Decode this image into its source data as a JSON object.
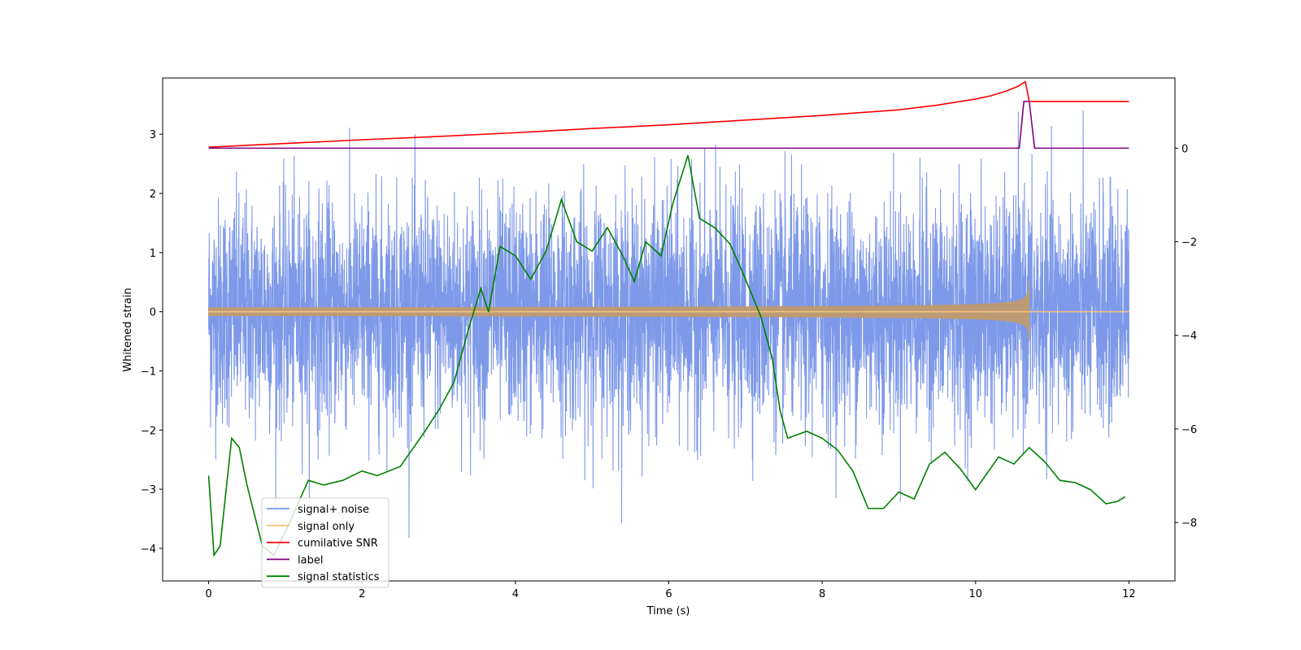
{
  "chart_data": {
    "type": "line",
    "title": "",
    "xlabel": "Time (s)",
    "ylabel": "Whitened strain",
    "xlim": [
      -0.6,
      12.6
    ],
    "ylim": [
      -4.55,
      3.95
    ],
    "y2lim": [
      -9.25,
      1.5
    ],
    "xticks": [
      0,
      2,
      4,
      6,
      8,
      10,
      12
    ],
    "yticks": [
      -4,
      -3,
      -2,
      -1,
      0,
      1,
      2,
      3
    ],
    "y2ticks": [
      -8,
      -6,
      -4,
      -2,
      0
    ],
    "legend_position": "lower-left",
    "series": [
      {
        "name": "signal+ noise",
        "color": "#7794e8",
        "axis": "left",
        "kind": "noise",
        "x_range": [
          0,
          12
        ],
        "sigma": 0.95,
        "min": -4.2,
        "max": 3.55
      },
      {
        "name": "signal only",
        "color": "#f6c47f",
        "axis": "left",
        "kind": "chirp",
        "x_range": [
          0,
          10.7
        ],
        "peak_amplitude": 0.68,
        "merger_time": 10.7
      },
      {
        "name": "cumilative SNR",
        "color": "#ff0000",
        "axis": "right",
        "x": [
          0,
          1,
          2,
          3,
          4,
          5,
          6,
          7,
          8,
          9,
          9.5,
          10,
          10.2,
          10.4,
          10.55,
          10.65,
          10.7,
          10.72,
          12
        ],
        "y": [
          0.02,
          0.1,
          0.18,
          0.25,
          0.33,
          0.42,
          0.5,
          0.6,
          0.7,
          0.82,
          0.92,
          1.05,
          1.12,
          1.22,
          1.32,
          1.42,
          1.0,
          1.0,
          1.0
        ]
      },
      {
        "name": "label",
        "color": "#800080",
        "axis": "right",
        "x": [
          0,
          10.57,
          10.63,
          10.7,
          10.77,
          12
        ],
        "y": [
          0,
          0,
          1.0,
          1.0,
          0,
          0
        ]
      },
      {
        "name": "signal statistics",
        "color": "#008000",
        "axis": "right",
        "x": [
          0,
          0.07,
          0.15,
          0.3,
          0.4,
          0.5,
          0.7,
          0.85,
          1.0,
          1.3,
          1.5,
          1.75,
          2.0,
          2.2,
          2.5,
          2.8,
          3.0,
          3.2,
          3.4,
          3.55,
          3.65,
          3.8,
          4.0,
          4.2,
          4.4,
          4.6,
          4.8,
          5.0,
          5.2,
          5.4,
          5.55,
          5.7,
          5.9,
          6.05,
          6.25,
          6.4,
          6.6,
          6.8,
          7.0,
          7.2,
          7.35,
          7.45,
          7.55,
          7.8,
          8.0,
          8.2,
          8.4,
          8.6,
          8.8,
          9.0,
          9.2,
          9.4,
          9.6,
          9.8,
          10.0,
          10.3,
          10.5,
          10.7,
          10.9,
          11.1,
          11.3,
          11.5,
          11.7,
          11.85,
          11.95
        ],
        "y": [
          -7.0,
          -8.7,
          -8.5,
          -6.2,
          -6.4,
          -7.2,
          -8.5,
          -8.7,
          -8.2,
          -7.1,
          -7.2,
          -7.1,
          -6.9,
          -7.0,
          -6.8,
          -6.1,
          -5.6,
          -5.0,
          -3.8,
          -3.0,
          -3.5,
          -2.1,
          -2.3,
          -2.8,
          -2.2,
          -1.1,
          -2.0,
          -2.2,
          -1.7,
          -2.3,
          -2.85,
          -2.0,
          -2.3,
          -1.2,
          -0.15,
          -1.5,
          -1.7,
          -2.05,
          -2.8,
          -3.6,
          -4.5,
          -5.6,
          -6.2,
          -6.05,
          -6.2,
          -6.45,
          -6.9,
          -7.7,
          -7.7,
          -7.35,
          -7.5,
          -6.75,
          -6.5,
          -6.85,
          -7.3,
          -6.6,
          -6.75,
          -6.4,
          -6.7,
          -7.1,
          -7.15,
          -7.3,
          -7.6,
          -7.55,
          -7.45
        ]
      }
    ]
  }
}
